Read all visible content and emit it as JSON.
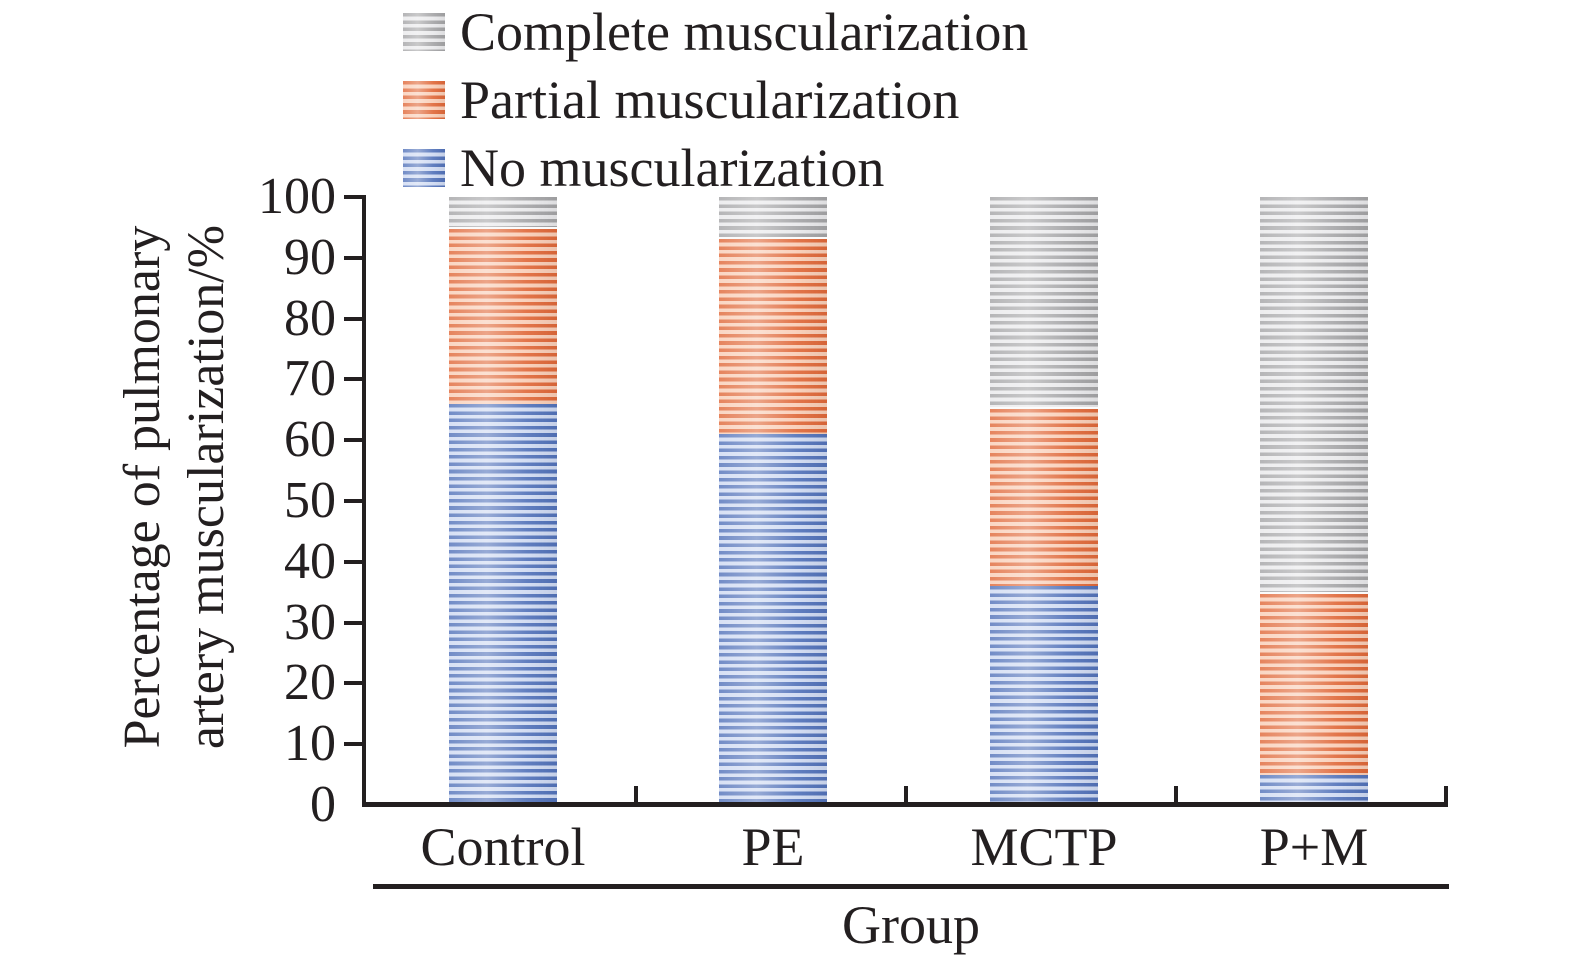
{
  "figure": {
    "background": "#FFFFFF",
    "text_color": "#231F20",
    "axis_color": "#231F20"
  },
  "chart_data": {
    "type": "bar",
    "stacked": true,
    "categories": [
      "Control",
      "PE",
      "MCTP",
      "P+M"
    ],
    "series": [
      {
        "name": "No muscularization",
        "values": [
          66,
          61,
          36,
          5
        ],
        "stripe_dark": "#5373BA",
        "stripe_light": "#CFDAF2"
      },
      {
        "name": "Partial muscularization",
        "values": [
          29,
          32.5,
          29.5,
          30
        ],
        "stripe_dark": "#E0693A",
        "stripe_light": "#F9CDB6"
      },
      {
        "name": "Complete muscularization",
        "values": [
          5,
          6.5,
          34.5,
          65
        ],
        "stripe_dark": "#A5A5A7",
        "stripe_light": "#E9E9EB"
      }
    ],
    "y_axis": {
      "title_lines": [
        "Percentage of pulmonary",
        "artery muscularization/%"
      ],
      "ticks": [
        0,
        10,
        20,
        30,
        40,
        50,
        60,
        70,
        80,
        90,
        100
      ],
      "range": [
        0,
        100
      ]
    },
    "x_axis": {
      "title": "Group"
    },
    "legend": {
      "position": "top",
      "order_top_to_bottom": [
        "Complete muscularization",
        "Partial muscularization",
        "No muscularization"
      ]
    }
  }
}
